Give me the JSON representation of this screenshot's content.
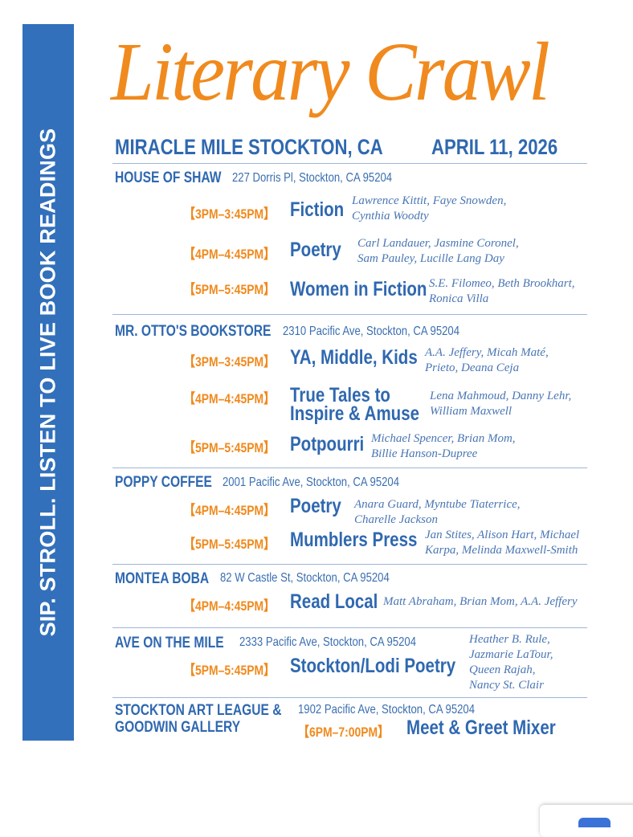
{
  "sidebar_text": "SIP. STROLL. LISTEN TO LIVE BOOK READINGS",
  "title": "Literary Crawl",
  "location": "MIRACLE MILE STOCKTON, CA",
  "date": "APRIL 11, 2026",
  "colors": {
    "blue": "#3270bb",
    "orange": "#f08a1e"
  },
  "venues": [
    {
      "name": "HOUSE OF SHAW",
      "address": "227 Dorris Pl, Stockton, CA 95204",
      "sessions": [
        {
          "time": "【3PM–3:45PM】",
          "title": "Fiction",
          "names": [
            "Lawrence Kittit, Faye Snowden,",
            "Cynthia Woodty"
          ]
        },
        {
          "time": "【4PM–4:45PM】",
          "title": "Poetry",
          "names": [
            "Carl Landauer, Jasmine Coronel,",
            "Sam Pauley, Lucille Lang Day"
          ]
        },
        {
          "time": "【5PM–5:45PM】",
          "title": "Women in Fiction",
          "names": [
            "S.E. Filomeo, Beth Brookhart,",
            "Ronica Villa"
          ]
        }
      ]
    },
    {
      "name": "MR. OTTO'S BOOKSTORE",
      "address": "2310 Pacific Ave, Stockton, CA 95204",
      "sessions": [
        {
          "time": "【3PM–3:45PM】",
          "title": "YA, Middle, Kids",
          "names": [
            "A.A. Jeffery, Micah Maté,",
            "Prieto, Deana Ceja"
          ]
        },
        {
          "time": "【4PM–4:45PM】",
          "title": [
            "True Tales to",
            "Inspire & Amuse"
          ],
          "names": [
            "Lena Mahmoud, Danny Lehr,",
            "William Maxwell"
          ]
        },
        {
          "time": "【5PM–5:45PM】",
          "title": "Potpourri",
          "names": [
            "Michael Spencer, Brian Mom,",
            "Billie Hanson-Dupree"
          ]
        }
      ]
    },
    {
      "name": "POPPY COFFEE",
      "address": "2001 Pacific Ave, Stockton, CA 95204",
      "sessions": [
        {
          "time": "【4PM–4:45PM】",
          "title": "Poetry",
          "names": [
            "Anara Guard, Myntube Tiaterrice,",
            "Charelle Jackson"
          ]
        },
        {
          "time": "【5PM–5:45PM】",
          "title": "Mumblers Press",
          "names": [
            "Jan Stites, Alison Hart, Michael",
            "Karpa, Melinda Maxwell-Smith"
          ]
        }
      ]
    },
    {
      "name": "MONTEA BOBA",
      "address": "82 W Castle St, Stockton, CA 95204",
      "sessions": [
        {
          "time": "【4PM–4:45PM】",
          "title": "Read Local",
          "names": [
            "Matt Abraham, Brian Mom, A.A. Jeffery"
          ]
        }
      ]
    },
    {
      "name": "AVE ON THE MILE",
      "address": "2333 Pacific Ave, Stockton, CA 95204",
      "sessions": [
        {
          "time": "【5PM–5:45PM】",
          "title": "Stockton/Lodi Poetry",
          "names": [
            "Heather B. Rule,",
            "Jazmarie LaTour,",
            "Queen Rajah,",
            "Nancy St. Clair"
          ]
        }
      ]
    },
    {
      "name": [
        "STOCKTON ART LEAGUE &",
        "GOODWIN GALLERY"
      ],
      "address": "1902 Pacific Ave, Stockton, CA 95204",
      "sessions": [
        {
          "time": "【6PM–7:00PM】",
          "title": "Meet & Greet Mixer"
        }
      ]
    }
  ]
}
